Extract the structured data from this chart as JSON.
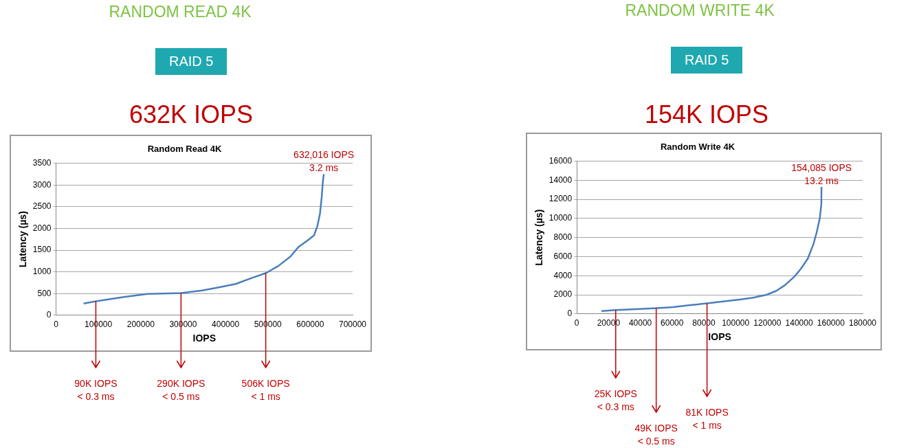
{
  "chart_data": [
    {
      "type": "line",
      "title": "Random Read 4K",
      "xlabel": "IOPS",
      "ylabel": "Latency (µs)",
      "xlim": [
        0,
        700000
      ],
      "xticks": [
        0,
        100000,
        200000,
        300000,
        400000,
        500000,
        600000,
        700000
      ],
      "ylim": [
        0,
        3500
      ],
      "yticks": [
        0,
        500,
        1000,
        1500,
        2000,
        2500,
        3000,
        3500
      ],
      "grid": "y",
      "marker": "none",
      "line_style": "solid",
      "series": [
        {
          "color": "#4a7ebb",
          "x": [
            65000,
            94000,
            160000,
            216000,
            295000,
            345000,
            384000,
            424000,
            463000,
            495000,
            524000,
            553000,
            572000,
            592000,
            609000,
            617000,
            623000,
            627000,
            630000,
            632016
          ],
          "values": [
            270,
            320,
            420,
            490,
            510,
            570,
            640,
            720,
            860,
            970,
            1130,
            1350,
            1570,
            1710,
            1840,
            2060,
            2340,
            2720,
            3100,
            3250
          ]
        }
      ],
      "annotations": [
        "RANDOM READ 4K",
        "RAID 5",
        "632K IOPS",
        {
          "text": "632,016 IOPS\n3.2 ms",
          "x": 632016,
          "y": 3250
        },
        {
          "text": "90K IOPS\n< 0.3 ms",
          "x": 94000,
          "y": 320
        },
        {
          "text": "290K IOPS\n< 0.5 ms",
          "x": 295000,
          "y": 510
        },
        {
          "text": "506K IOPS\n< 1 ms",
          "x": 495000,
          "y": 970
        }
      ]
    },
    {
      "type": "line",
      "title": "Random Write 4K",
      "xlabel": "IOPS",
      "ylabel": "Latency (µs)",
      "xlim": [
        0,
        180000
      ],
      "xticks": [
        0,
        20000,
        40000,
        60000,
        80000,
        100000,
        120000,
        140000,
        160000,
        180000
      ],
      "ylim": [
        0,
        16000
      ],
      "yticks": [
        0,
        2000,
        4000,
        6000,
        8000,
        10000,
        12000,
        14000,
        16000
      ],
      "grid": "y",
      "marker": "none",
      "line_style": "solid",
      "series": [
        {
          "color": "#4a7ebb",
          "x": [
            15500,
            24500,
            39000,
            50000,
            60500,
            70500,
            82000,
            92000,
            102500,
            111000,
            119500,
            125500,
            131000,
            137000,
            141000,
            145500,
            149000,
            151000,
            153000,
            154000,
            154085
          ],
          "values": [
            300,
            400,
            500,
            600,
            700,
            900,
            1100,
            1300,
            1500,
            1700,
            2000,
            2400,
            3000,
            3900,
            4700,
            5800,
            7300,
            8500,
            10000,
            11500,
            13300
          ]
        }
      ],
      "annotations": [
        "RANDOM WRITE 4K",
        "RAID 5",
        "154K IOPS",
        {
          "text": "154,085 IOPS\n13.2 ms",
          "x": 154085,
          "y": 13300
        },
        {
          "text": "25K IOPS\n< 0.3 ms",
          "x": 24500,
          "y": 400
        },
        {
          "text": "49K IOPS\n< 0.5 ms",
          "x": 50000,
          "y": 600
        },
        {
          "text": "81K IOPS\n< 1 ms",
          "x": 82000,
          "y": 1100
        }
      ]
    }
  ]
}
